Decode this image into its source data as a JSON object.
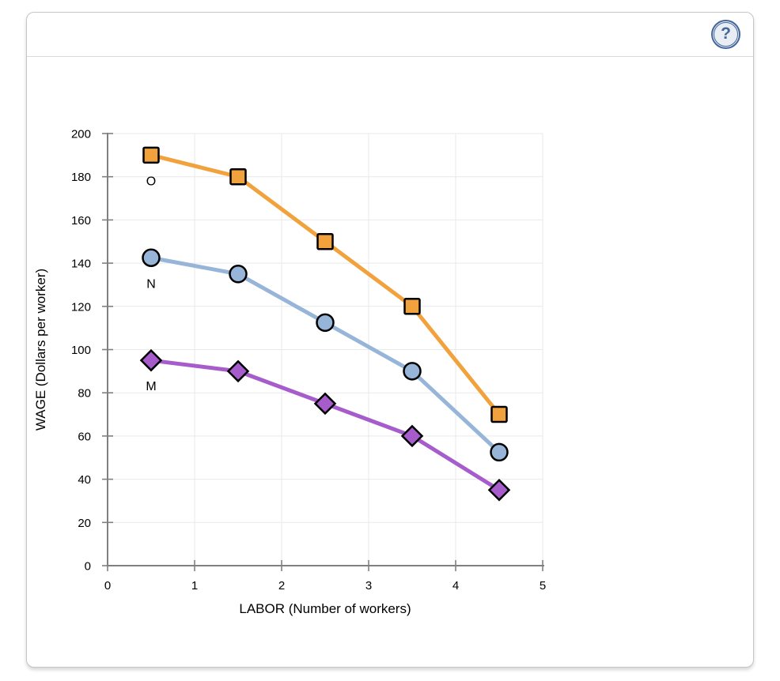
{
  "header": {
    "help_glyph": "?"
  },
  "chart_data": {
    "type": "line",
    "xlabel": "LABOR (Number of workers)",
    "ylabel": "WAGE (Dollars per worker)",
    "xlim": [
      0,
      5
    ],
    "xstep": 1,
    "ylim": [
      0,
      200
    ],
    "ystep": 20,
    "grid": true,
    "series": [
      {
        "name": "O",
        "marker": "square",
        "color": "#F1A23C",
        "points": [
          [
            0.5,
            190
          ],
          [
            1.5,
            180
          ],
          [
            2.5,
            150
          ],
          [
            3.5,
            120
          ],
          [
            4.5,
            70
          ]
        ]
      },
      {
        "name": "N",
        "marker": "circle",
        "color": "#96B5D8",
        "points": [
          [
            0.5,
            142.5
          ],
          [
            1.5,
            135
          ],
          [
            2.5,
            112.5
          ],
          [
            3.5,
            90
          ],
          [
            4.5,
            52.5
          ]
        ]
      },
      {
        "name": "M",
        "marker": "diamond",
        "color": "#A65CCB",
        "points": [
          [
            0.5,
            95
          ],
          [
            1.5,
            90
          ],
          [
            2.5,
            75
          ],
          [
            3.5,
            60
          ],
          [
            4.5,
            35
          ]
        ]
      }
    ]
  },
  "colors": {
    "axis": "#808080",
    "grid": "#e9e9e9",
    "marker_stroke": "#000000",
    "text": "#000000",
    "help_ring": "#44679b",
    "help_fill": "#e9eef4",
    "card_border": "#c6c6c6",
    "divider": "#d9d9d9"
  }
}
